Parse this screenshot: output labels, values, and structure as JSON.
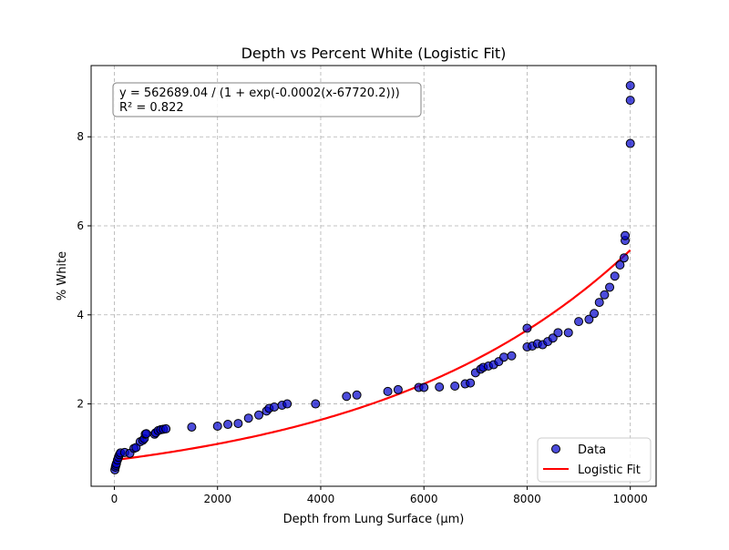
{
  "chart_data": {
    "type": "scatter",
    "title": "Depth vs Percent White (Logistic Fit)",
    "xlabel": "Depth from Lung Surface (µm)",
    "ylabel": "% White",
    "xlim": [
      -450,
      10500
    ],
    "ylim": [
      0.15,
      9.6
    ],
    "xticks": [
      0,
      2000,
      4000,
      6000,
      8000,
      10000
    ],
    "yticks": [
      2,
      4,
      6,
      8
    ],
    "grid": true,
    "legend_position": "lower right",
    "annotation": {
      "line1": "y = 562689.04 / (1 + exp(-0.0002(x-67720.2)))",
      "line2": "R² = 0.822"
    },
    "series": [
      {
        "name": "Data",
        "type": "scatter",
        "color": "#0000cc",
        "points": [
          [
            10,
            0.52
          ],
          [
            20,
            0.58
          ],
          [
            30,
            0.62
          ],
          [
            40,
            0.66
          ],
          [
            60,
            0.74
          ],
          [
            80,
            0.8
          ],
          [
            100,
            0.86
          ],
          [
            120,
            0.9
          ],
          [
            200,
            0.91
          ],
          [
            300,
            0.89
          ],
          [
            380,
            1.0
          ],
          [
            420,
            1.02
          ],
          [
            500,
            1.15
          ],
          [
            550,
            1.18
          ],
          [
            580,
            1.22
          ],
          [
            600,
            1.32
          ],
          [
            620,
            1.33
          ],
          [
            780,
            1.32
          ],
          [
            800,
            1.35
          ],
          [
            850,
            1.4
          ],
          [
            900,
            1.42
          ],
          [
            950,
            1.43
          ],
          [
            1000,
            1.44
          ],
          [
            1500,
            1.48
          ],
          [
            2000,
            1.5
          ],
          [
            2200,
            1.54
          ],
          [
            2400,
            1.56
          ],
          [
            2600,
            1.68
          ],
          [
            2800,
            1.75
          ],
          [
            2950,
            1.84
          ],
          [
            3000,
            1.9
          ],
          [
            3100,
            1.93
          ],
          [
            3250,
            1.97
          ],
          [
            3350,
            2.0
          ],
          [
            3900,
            2.0
          ],
          [
            4500,
            2.17
          ],
          [
            4700,
            2.2
          ],
          [
            5300,
            2.28
          ],
          [
            5500,
            2.32
          ],
          [
            5900,
            2.37
          ],
          [
            6000,
            2.37
          ],
          [
            6300,
            2.38
          ],
          [
            6600,
            2.4
          ],
          [
            6800,
            2.45
          ],
          [
            6900,
            2.47
          ],
          [
            7000,
            2.7
          ],
          [
            7100,
            2.78
          ],
          [
            7150,
            2.82
          ],
          [
            7250,
            2.85
          ],
          [
            7350,
            2.88
          ],
          [
            7450,
            2.95
          ],
          [
            7550,
            3.05
          ],
          [
            7700,
            3.08
          ],
          [
            8000,
            3.7
          ],
          [
            8000,
            3.28
          ],
          [
            8100,
            3.3
          ],
          [
            8200,
            3.35
          ],
          [
            8300,
            3.33
          ],
          [
            8400,
            3.4
          ],
          [
            8500,
            3.48
          ],
          [
            8600,
            3.6
          ],
          [
            8800,
            3.6
          ],
          [
            9000,
            3.85
          ],
          [
            9200,
            3.9
          ],
          [
            9300,
            4.03
          ],
          [
            9400,
            4.28
          ],
          [
            9500,
            4.45
          ],
          [
            9600,
            4.62
          ],
          [
            9700,
            4.87
          ],
          [
            9800,
            5.12
          ],
          [
            9880,
            5.28
          ],
          [
            9900,
            5.67
          ],
          [
            9900,
            5.78
          ],
          [
            10000,
            9.15
          ],
          [
            10000,
            8.82
          ],
          [
            10000,
            7.85
          ]
        ]
      },
      {
        "name": "Logistic Fit",
        "type": "line",
        "color": "#ff0000",
        "formula": {
          "L": 562689.04,
          "k": 0.0002,
          "x0": 67720.2
        },
        "x_range": [
          0,
          10000
        ]
      }
    ]
  }
}
